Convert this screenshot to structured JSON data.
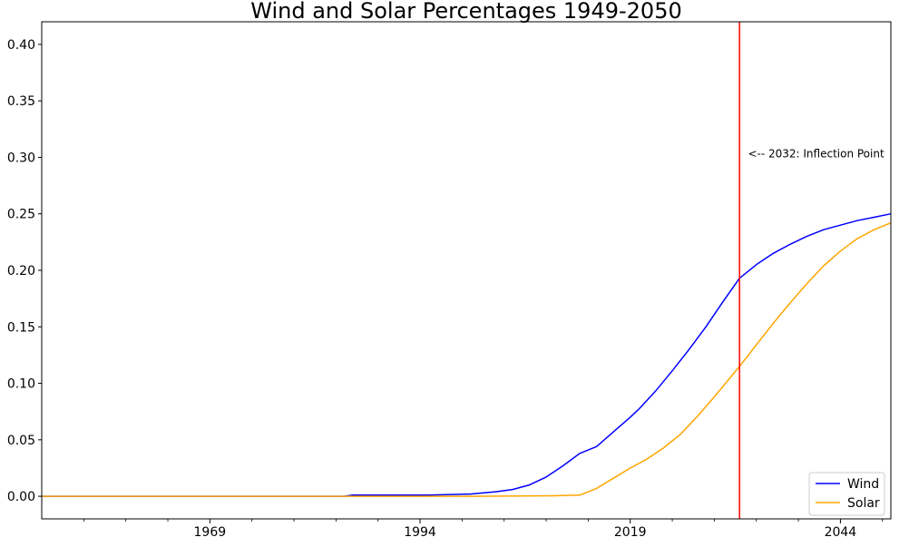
{
  "chart_data": {
    "type": "line",
    "title": "Wind and Solar Percentages 1949-2050",
    "xlabel": "",
    "ylabel": "",
    "xlim": [
      1949,
      2050
    ],
    "ylim": [
      -0.02,
      0.42
    ],
    "xticks": [
      1969,
      1994,
      2019,
      2044
    ],
    "xtick_labels": [
      "1969",
      "1994",
      "2019",
      "2044"
    ],
    "yticks": [
      0.0,
      0.05,
      0.1,
      0.15,
      0.2,
      0.25,
      0.3,
      0.35,
      0.4
    ],
    "ytick_labels": [
      "0.00",
      "0.05",
      "0.10",
      "0.15",
      "0.20",
      "0.25",
      "0.30",
      "0.35",
      "0.40"
    ],
    "grid": false,
    "legend_position": "lower-right",
    "series": [
      {
        "name": "Wind",
        "color": "#0000ff",
        "x": [
          1949,
          1985,
          1986,
          1990,
          1995,
          2000,
          2003,
          2005,
          2007,
          2009,
          2011,
          2013,
          2015,
          2017,
          2019,
          2020,
          2022,
          2024,
          2026,
          2028,
          2030,
          2032,
          2034,
          2036,
          2038,
          2040,
          2042,
          2044,
          2046,
          2048,
          2050
        ],
        "y": [
          0.0,
          0.0,
          0.001,
          0.001,
          0.001,
          0.002,
          0.004,
          0.006,
          0.01,
          0.017,
          0.027,
          0.038,
          0.044,
          0.057,
          0.07,
          0.077,
          0.093,
          0.111,
          0.13,
          0.15,
          0.172,
          0.193,
          0.205,
          0.215,
          0.223,
          0.23,
          0.236,
          0.24,
          0.244,
          0.247,
          0.25
        ]
      },
      {
        "name": "Solar",
        "color": "#ffa500",
        "x": [
          1949,
          2000,
          2010,
          2013,
          2014,
          2015,
          2017,
          2019,
          2021,
          2023,
          2025,
          2027,
          2029,
          2031,
          2032,
          2034,
          2036,
          2038,
          2040,
          2042,
          2044,
          2046,
          2048,
          2050
        ],
        "y": [
          0.0,
          0.0,
          0.0005,
          0.001,
          0.004,
          0.007,
          0.016,
          0.025,
          0.033,
          0.043,
          0.055,
          0.071,
          0.088,
          0.106,
          0.115,
          0.134,
          0.153,
          0.171,
          0.188,
          0.204,
          0.217,
          0.228,
          0.236,
          0.242
        ]
      }
    ],
    "vline": {
      "x": 2032,
      "color": "#ff0000"
    },
    "annotation": {
      "text": "<-- 2032: Inflection Point",
      "x": 2033,
      "y": 0.303
    }
  }
}
